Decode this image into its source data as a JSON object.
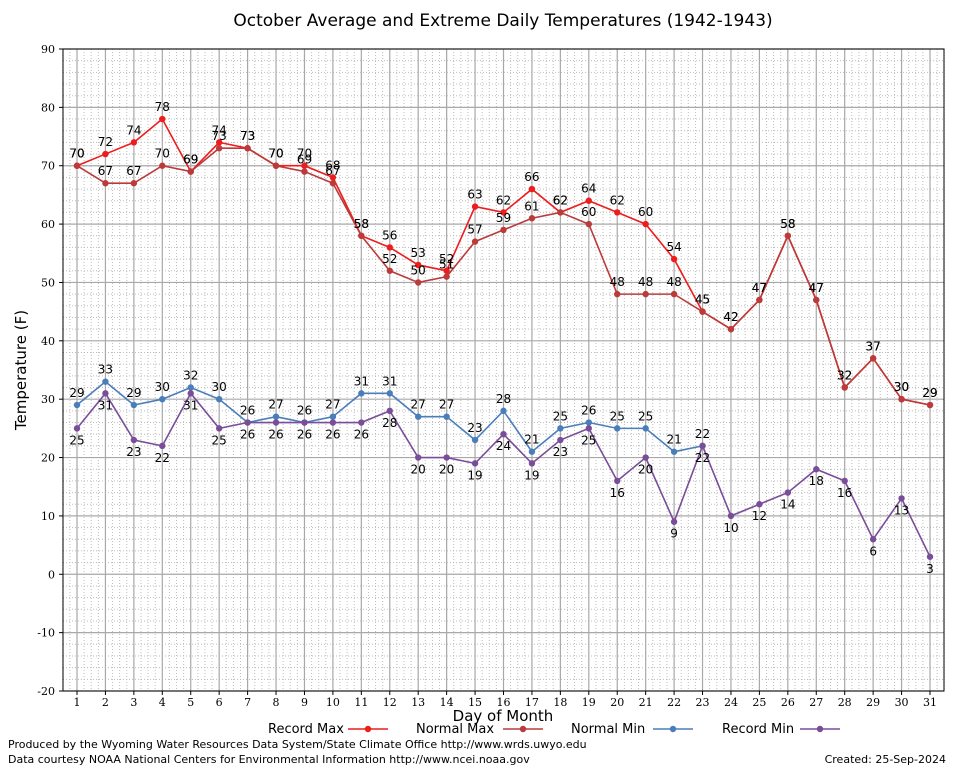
{
  "chart_data": {
    "type": "line",
    "title": "October Average and Extreme Daily Temperatures (1942-1943)",
    "xlabel": "Day of Month",
    "ylabel": "Temperature (F)",
    "x": [
      1,
      2,
      3,
      4,
      5,
      6,
      7,
      8,
      9,
      10,
      11,
      12,
      13,
      14,
      15,
      16,
      17,
      18,
      19,
      20,
      21,
      22,
      23,
      24,
      25,
      26,
      27,
      28,
      29,
      30,
      31
    ],
    "ylim": [
      -20,
      90
    ],
    "yticks": [
      -20,
      -10,
      0,
      10,
      20,
      30,
      40,
      50,
      60,
      70,
      80,
      90
    ],
    "grid": true,
    "legend_position": "bottom",
    "series": [
      {
        "name": "Record Max",
        "color": "#ee1c1c",
        "values": [
          70,
          72,
          74,
          78,
          69,
          74,
          73,
          70,
          70,
          68,
          58,
          56,
          53,
          52,
          63,
          62,
          66,
          62,
          64,
          62,
          60,
          54,
          45,
          42,
          47,
          58,
          47,
          32,
          37,
          30,
          29
        ],
        "label_pos": "above"
      },
      {
        "name": "Normal Max",
        "color": "#bb3b3b",
        "values": [
          70,
          67,
          67,
          70,
          69,
          73,
          73,
          70,
          69,
          67,
          58,
          52,
          50,
          51,
          57,
          59,
          61,
          62,
          60,
          48,
          48,
          48,
          45,
          42,
          47,
          58,
          47,
          32,
          37,
          30,
          29
        ],
        "label_pos": "above"
      },
      {
        "name": "Normal Min",
        "color": "#4a7ebb",
        "values": [
          29,
          33,
          29,
          30,
          32,
          30,
          26,
          27,
          26,
          27,
          31,
          31,
          27,
          27,
          23,
          28,
          21,
          25,
          26,
          25,
          25,
          21,
          22,
          null,
          null,
          null,
          null,
          null,
          null,
          null,
          null
        ],
        "label_pos": "above"
      },
      {
        "name": "Record Min",
        "color": "#7a4d99",
        "values": [
          25,
          31,
          23,
          22,
          31,
          25,
          26,
          26,
          26,
          26,
          26,
          28,
          20,
          20,
          19,
          24,
          19,
          23,
          25,
          16,
          20,
          9,
          22,
          10,
          12,
          14,
          18,
          16,
          6,
          13,
          3
        ],
        "label_pos": "below"
      }
    ]
  },
  "footer": {
    "line1": "Produced by the Wyoming Water Resources Data System/State Climate Office http://www.wrds.uwyo.edu",
    "line2": "Data courtesy NOAA National Centers for Environmental Information http://www.ncei.noaa.gov",
    "created": "Created:  25-Sep-2024"
  }
}
